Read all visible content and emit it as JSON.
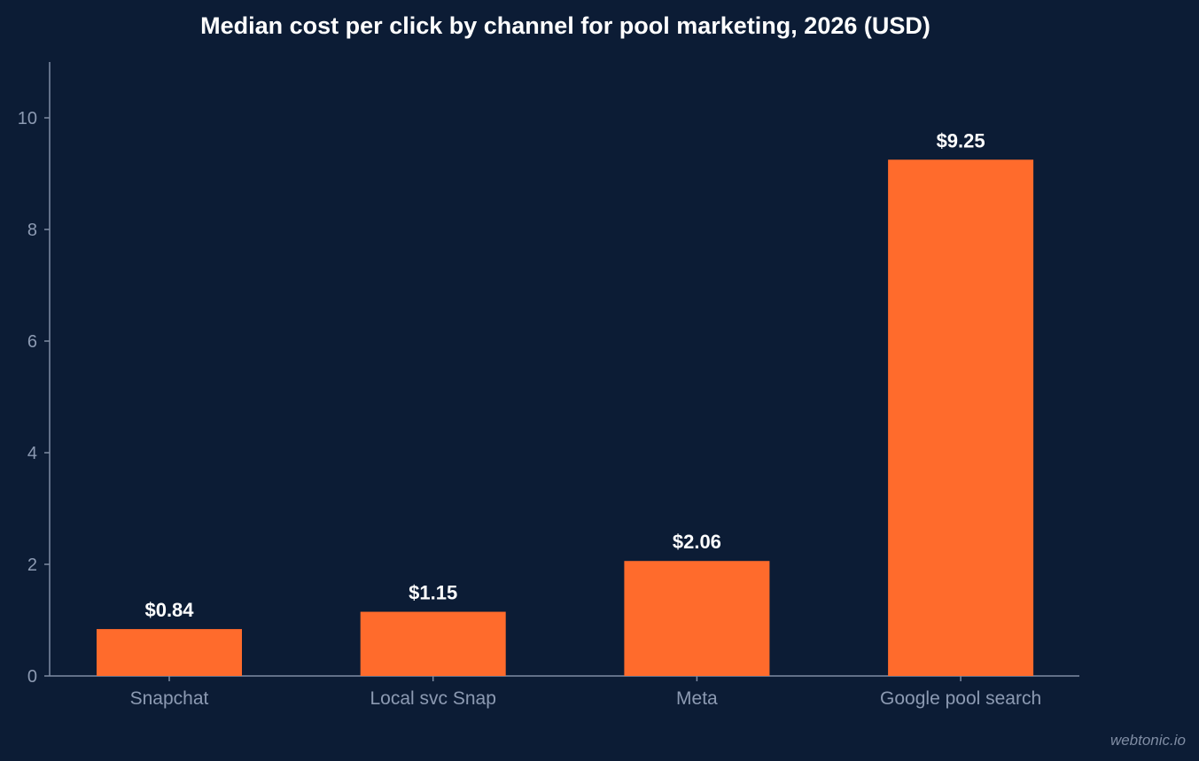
{
  "chart_data": {
    "type": "bar",
    "title": "Median cost per click by channel for pool marketing, 2026 (USD)",
    "xlabel": "",
    "ylabel": "",
    "categories": [
      "Snapchat",
      "Local svc Snap",
      "Meta",
      "Google pool search"
    ],
    "values": [
      0.84,
      1.15,
      2.06,
      9.25
    ],
    "value_labels": [
      "$0.84",
      "$1.15",
      "$2.06",
      "$9.25"
    ],
    "ylim": [
      0,
      11
    ],
    "yticks": [
      0,
      2,
      4,
      6,
      8,
      10
    ],
    "grid": false,
    "bar_color": "#ff6b2c",
    "background_color": "#0c1c35"
  },
  "watermark": "webtonic.io"
}
